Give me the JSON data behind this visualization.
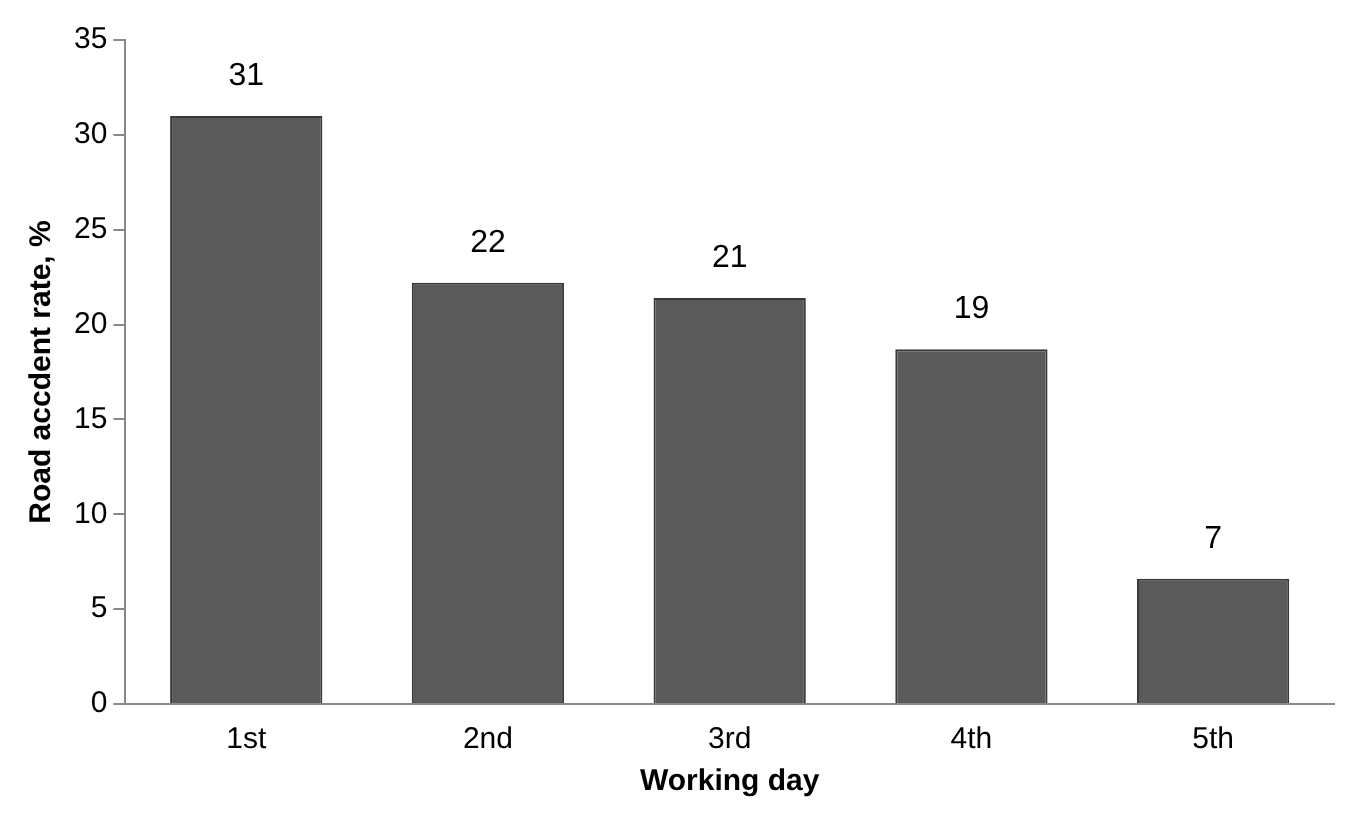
{
  "chart_data": {
    "type": "bar",
    "xlabel": "Working day",
    "ylabel": "Road accdent rate, %",
    "categories": [
      "1st",
      "2nd",
      "3rd",
      "4th",
      "5th"
    ],
    "values": [
      31,
      22.2,
      21.4,
      18.7,
      6.6
    ],
    "value_labels": [
      "31",
      "22",
      "21",
      "19",
      "7"
    ],
    "color": "#5a5a5a",
    "ylim": [
      0,
      35
    ],
    "yticks": [
      0,
      5,
      10,
      15,
      20,
      25,
      30,
      35
    ],
    "grid": false,
    "legend": false
  }
}
